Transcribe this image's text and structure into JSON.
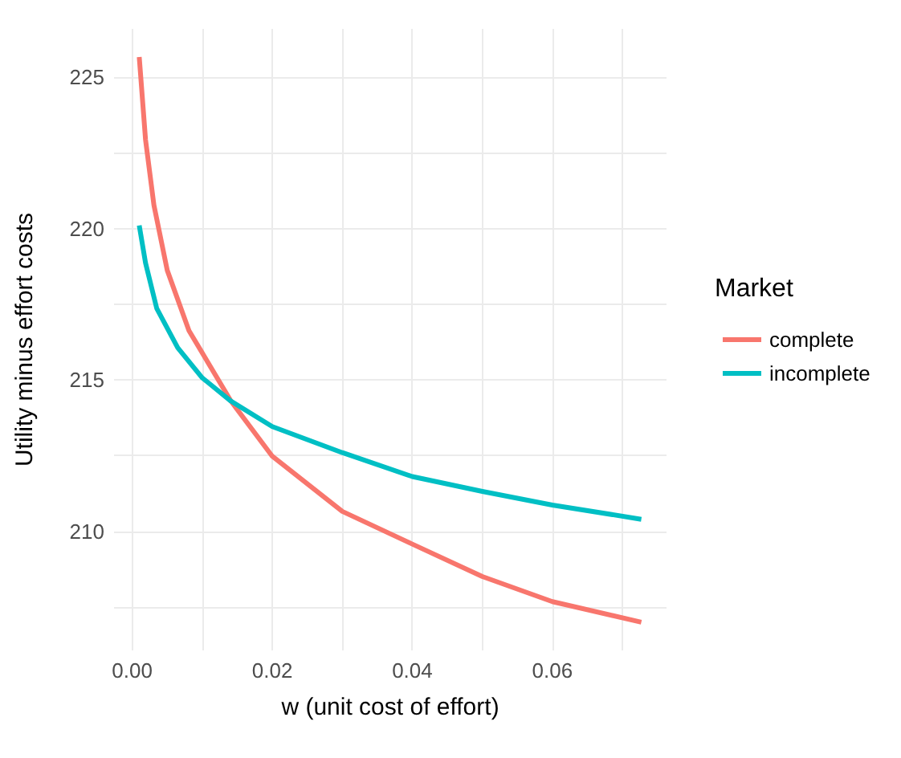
{
  "chart_data": {
    "type": "line",
    "xlabel": "w (unit cost of effort)",
    "ylabel": "Utility minus effort costs",
    "legend_title": "Market",
    "legend": "right",
    "grid": true,
    "marker": "none",
    "line_style": "solid",
    "xlim": [
      -0.0026,
      0.0763
    ],
    "ylim": [
      206.07,
      226.59
    ],
    "xticks": [
      {
        "value": 0,
        "label": "0.00"
      },
      {
        "value": 0.01,
        "label": null
      },
      {
        "value": 0.02,
        "label": "0.02"
      },
      {
        "value": 0.03,
        "label": null
      },
      {
        "value": 0.04,
        "label": "0.04"
      },
      {
        "value": 0.05,
        "label": null
      },
      {
        "value": 0.06,
        "label": "0.06"
      },
      {
        "value": 0.07,
        "label": null
      }
    ],
    "yticks": [
      {
        "value": 207.5,
        "label": null
      },
      210,
      {
        "value": 212.5,
        "label": null
      },
      215,
      {
        "value": 217.5,
        "label": null
      },
      220,
      {
        "value": 222.5,
        "label": null
      },
      225
    ],
    "series": [
      {
        "name": "complete",
        "color": "#f8766d",
        "x": [
          0.001,
          0.0019,
          0.0031,
          0.005,
          0.0081,
          0.0141,
          0.02,
          0.03,
          0.04,
          0.05,
          0.06,
          0.0727
        ],
        "values": [
          225.66,
          222.93,
          220.77,
          218.62,
          216.63,
          214.3,
          212.48,
          210.66,
          209.58,
          208.51,
          207.68,
          207.0
        ]
      },
      {
        "name": "incomplete",
        "color": "#00bfc4",
        "x": [
          0.001,
          0.0019,
          0.0035,
          0.0065,
          0.01,
          0.0141,
          0.02,
          0.03,
          0.04,
          0.05,
          0.06,
          0.0727
        ],
        "values": [
          220.1,
          218.86,
          217.36,
          216.06,
          215.07,
          214.3,
          213.46,
          212.6,
          211.81,
          211.32,
          210.87,
          210.4
        ]
      }
    ]
  }
}
